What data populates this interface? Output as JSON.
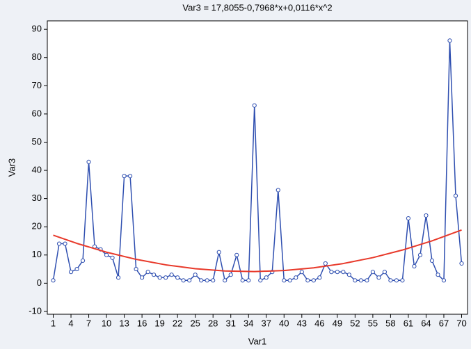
{
  "chart_data": {
    "type": "line",
    "title": "Var3 = 17,8055-0,7968*x+0,0116*x^2",
    "x_label": "Var1",
    "y_label": "Var3",
    "x": [
      1,
      2,
      3,
      4,
      5,
      6,
      7,
      8,
      9,
      10,
      11,
      12,
      13,
      14,
      15,
      16,
      17,
      18,
      19,
      20,
      21,
      22,
      23,
      24,
      25,
      26,
      27,
      28,
      29,
      30,
      31,
      32,
      33,
      34,
      35,
      36,
      37,
      38,
      39,
      40,
      41,
      42,
      43,
      44,
      45,
      46,
      47,
      48,
      49,
      50,
      51,
      52,
      53,
      54,
      55,
      56,
      57,
      58,
      59,
      60,
      61,
      62,
      63,
      64,
      65,
      66,
      67,
      68,
      69,
      70
    ],
    "series": [
      {
        "color": "#2f4fb0",
        "values": [
          1,
          14,
          14,
          4,
          5,
          8,
          43,
          13,
          12,
          10,
          9,
          2,
          38,
          38,
          5,
          2,
          4,
          3,
          2,
          2,
          3,
          2,
          1,
          1,
          3,
          1,
          1,
          1,
          11,
          1,
          3,
          10,
          1,
          1,
          63,
          1,
          2,
          4,
          33,
          1,
          1,
          2,
          4,
          1,
          1,
          2,
          7,
          4,
          4,
          4,
          3,
          1,
          1,
          1,
          4,
          2,
          4,
          1,
          1,
          1,
          23,
          6,
          10,
          24,
          8,
          3,
          1,
          86,
          31,
          7
        ]
      },
      {
        "color": "#e8392a",
        "x": [
          1,
          5,
          10,
          15,
          20,
          25,
          30,
          35,
          40,
          45,
          50,
          55,
          60,
          65,
          70
        ],
        "values": [
          17.02,
          14.11,
          11.0,
          8.46,
          6.51,
          5.14,
          4.34,
          4.13,
          4.49,
          5.44,
          6.97,
          9.07,
          11.76,
          15.02,
          18.87
        ]
      }
    ],
    "xlim": [
      0,
      71
    ],
    "ylim": [
      -11,
      93
    ],
    "xticks": [
      1,
      4,
      7,
      10,
      13,
      16,
      19,
      22,
      25,
      28,
      31,
      34,
      37,
      40,
      43,
      46,
      49,
      52,
      55,
      58,
      61,
      64,
      67,
      70
    ],
    "yticks": [
      -10,
      0,
      10,
      20,
      30,
      40,
      50,
      60,
      70,
      80,
      90
    ]
  }
}
